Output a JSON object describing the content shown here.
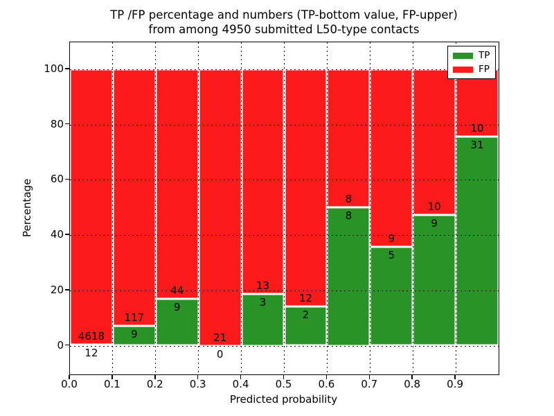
{
  "title": {
    "line1": "TP /FP percentage and numbers (TP-bottom value, FP-upper)",
    "line2": "from among 4950 submitted L50-type contacts"
  },
  "axes": {
    "x_label": "Predicted probability",
    "y_label": "Percentage",
    "x_tick_labels": [
      "0.0",
      "0.1",
      "0.2",
      "0.3",
      "0.4",
      "0.5",
      "0.6",
      "0.7",
      "0.8",
      "0.9"
    ],
    "y_tick_labels": [
      "0",
      "20",
      "40",
      "60",
      "80",
      "100"
    ],
    "y_tick_values": [
      0,
      20,
      40,
      60,
      80,
      100
    ]
  },
  "legend": {
    "items": [
      {
        "label": "TP",
        "color": "#2a9327"
      },
      {
        "label": "FP",
        "color": "#fc1a1a"
      }
    ]
  },
  "colors": {
    "tp": "#2a9327",
    "fp": "#fc1a1a",
    "bar_edge": "#ffffff",
    "grid": "#000000"
  },
  "chart_data": {
    "type": "bar",
    "stacked": true,
    "normalized_to_percent": true,
    "title": "TP /FP percentage and numbers (TP-bottom value, FP-upper) from among 4950 submitted L50-type contacts",
    "xlabel": "Predicted probability",
    "ylabel": "Percentage",
    "total_submitted": 4950,
    "categories": [
      "0.0-0.1",
      "0.1-0.2",
      "0.2-0.3",
      "0.3-0.4",
      "0.4-0.5",
      "0.5-0.6",
      "0.6-0.7",
      "0.7-0.8",
      "0.8-0.9",
      "0.9-1.0"
    ],
    "bin_starts": [
      0.0,
      0.1,
      0.2,
      0.3,
      0.4,
      0.5,
      0.6,
      0.7,
      0.8,
      0.9
    ],
    "bin_width": 0.1,
    "series": [
      {
        "name": "TP",
        "position": "bottom",
        "counts": [
          12,
          9,
          9,
          0,
          3,
          2,
          8,
          5,
          9,
          31
        ],
        "color": "#2a9327"
      },
      {
        "name": "FP",
        "position": "top",
        "counts": [
          4618,
          117,
          44,
          21,
          13,
          12,
          8,
          9,
          10,
          10
        ],
        "color": "#fc1a1a"
      }
    ],
    "tp_percent": [
      0.26,
      7.14,
      16.98,
      0.0,
      18.75,
      14.29,
      50.0,
      35.71,
      47.37,
      75.61
    ],
    "xlim": [
      0.0,
      1.0
    ],
    "ylim": [
      -10.7,
      109.3
    ],
    "grid": true,
    "grid_style": "dotted",
    "legend_position": "upper right"
  }
}
